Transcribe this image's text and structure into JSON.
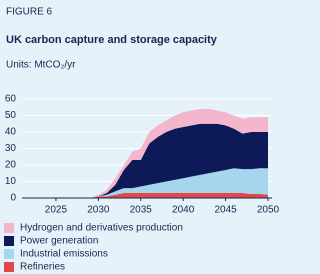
{
  "chart_data": {
    "type": "stacked_area",
    "label": "FIGURE 6",
    "title": "UK carbon capture and storage capacity",
    "units": "Units: MtCO₂/yr",
    "x": [
      2029,
      2030,
      2031,
      2032,
      2033,
      2034,
      2035,
      2036,
      2037,
      2038,
      2039,
      2040,
      2041,
      2042,
      2043,
      2044,
      2045,
      2046,
      2047,
      2048,
      2049,
      2050
    ],
    "xlim": [
      2021,
      2050
    ],
    "xticks": [
      2025,
      2030,
      2035,
      2040,
      2045,
      2050
    ],
    "ylim": [
      0,
      60
    ],
    "yticks": [
      0,
      10,
      20,
      30,
      40,
      50,
      60
    ],
    "grid": true,
    "series": [
      {
        "name": "Refineries",
        "color": "#e0484a",
        "values": [
          0,
          1,
          1,
          2,
          3,
          3,
          3,
          3,
          3,
          3,
          3,
          3,
          3,
          3,
          3,
          3,
          3,
          3,
          3,
          2.5,
          2.5,
          2
        ]
      },
      {
        "name": "Industrial emissions",
        "color": "#a6d6ee",
        "values": [
          0,
          0,
          1,
          2,
          3,
          3,
          4,
          5,
          6,
          7,
          8,
          9,
          10,
          11,
          12,
          13,
          14,
          15,
          14.5,
          15,
          15.5,
          16
        ]
      },
      {
        "name": "Power generation",
        "color": "#0d1a57",
        "values": [
          0,
          0,
          1,
          4,
          11,
          17,
          16,
          25,
          28,
          30,
          31,
          31,
          31,
          31,
          30,
          29,
          27,
          24,
          21.5,
          22.5,
          22,
          22
        ]
      },
      {
        "name": "Hydrogen and derivatives production",
        "color": "#f3b6cd",
        "values": [
          0,
          1,
          2,
          4,
          3,
          5,
          7,
          7,
          7,
          7,
          8,
          9,
          9,
          9,
          9,
          8,
          8,
          8,
          9,
          9,
          9,
          9
        ]
      }
    ]
  }
}
